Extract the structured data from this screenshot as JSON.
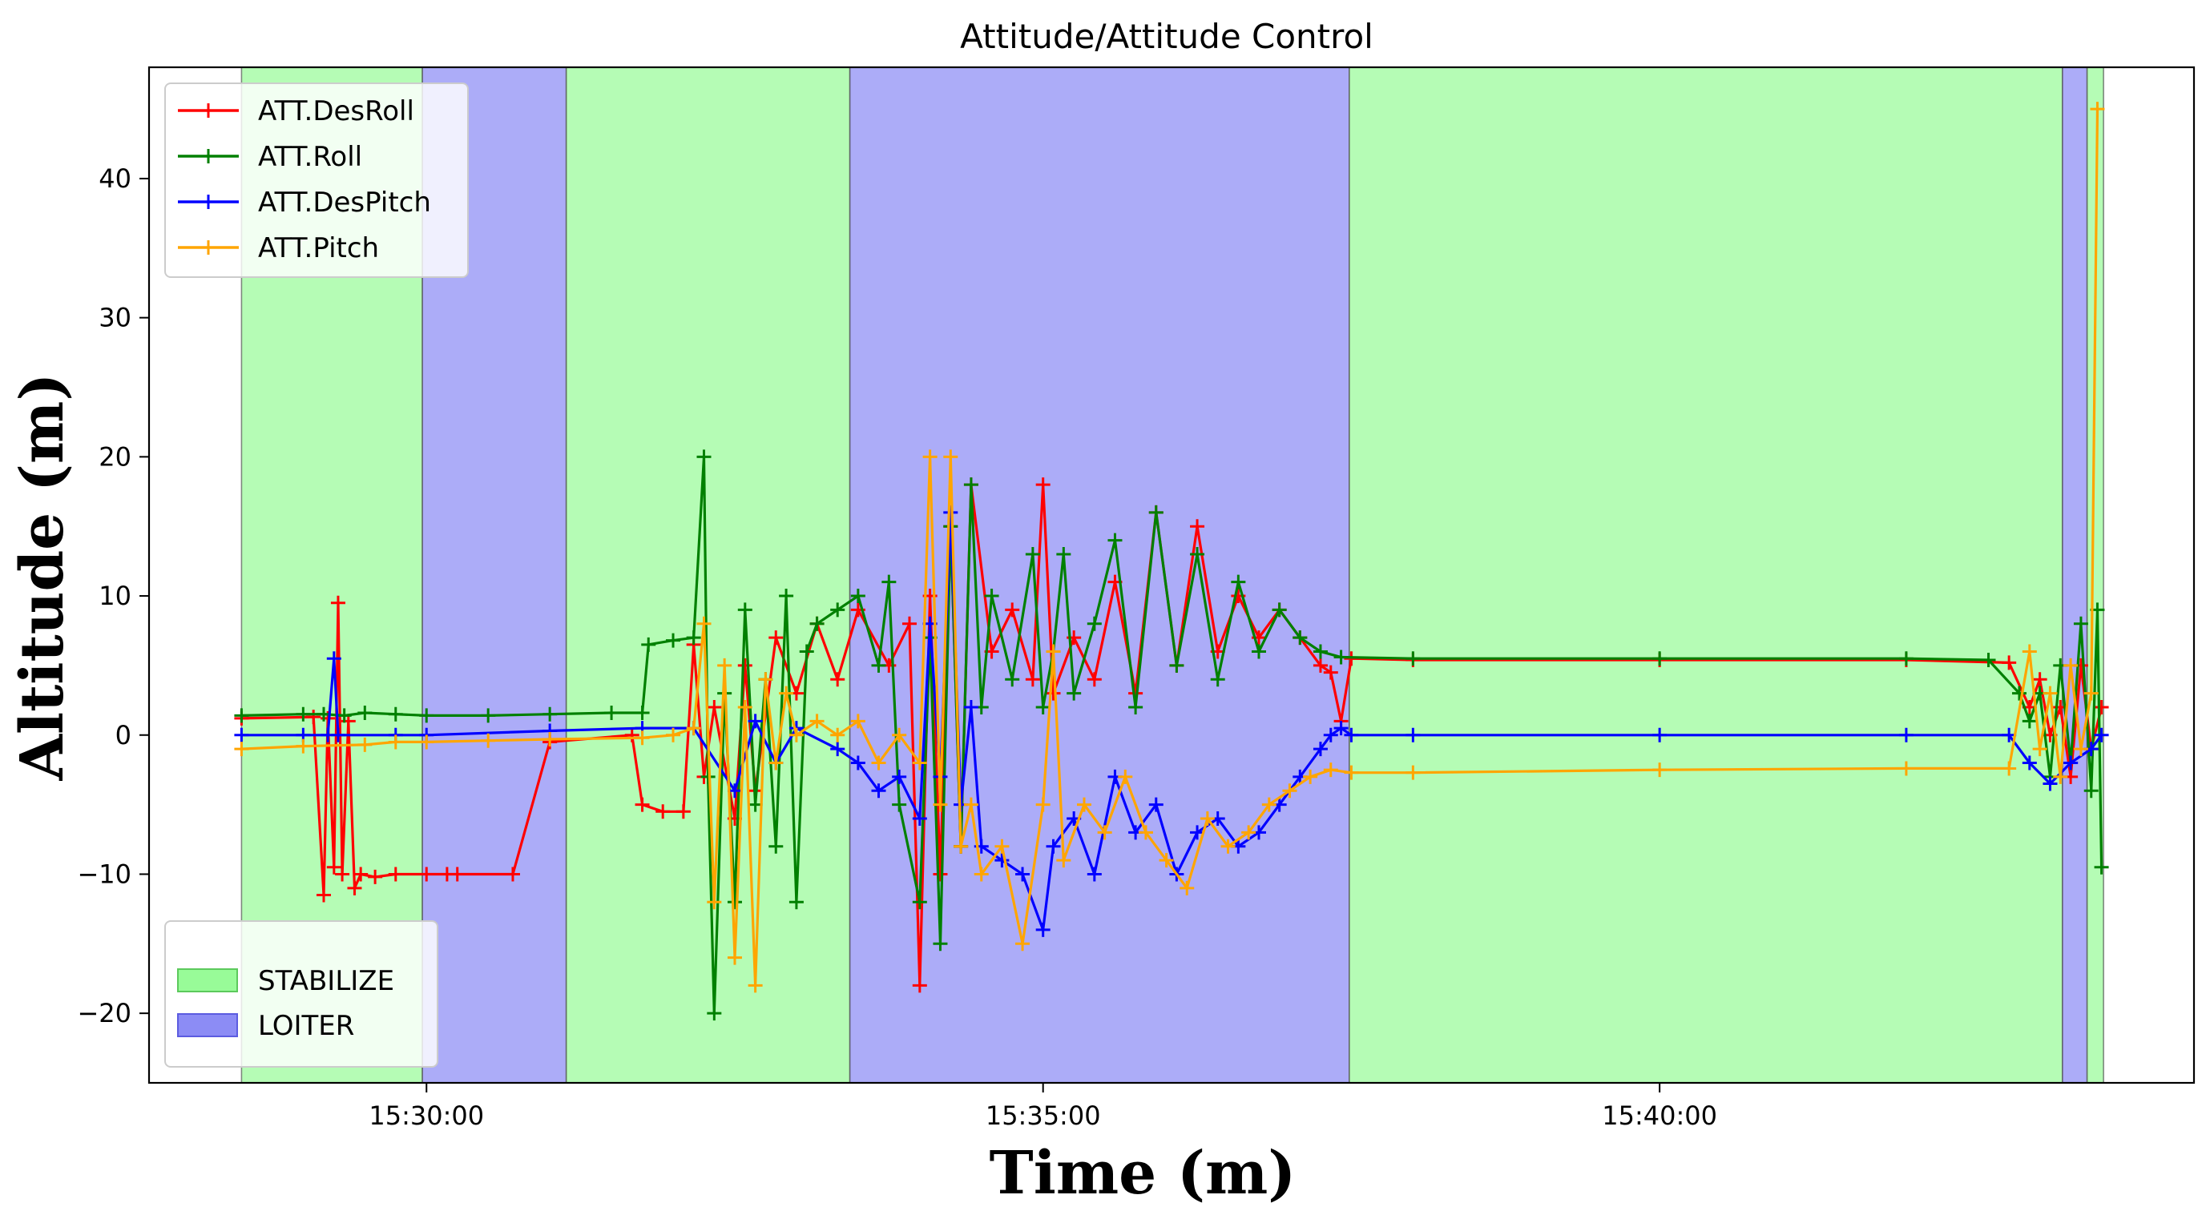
{
  "chart_data": {
    "type": "line",
    "title": "Attitude/Attitude Control",
    "xlabel": "Time (m)",
    "ylabel": "Altitude (m)",
    "x_unit": "time of day (HH:MM:SS)",
    "xlim": [
      "15:27:45",
      "15:44:20"
    ],
    "ylim": [
      -25,
      48
    ],
    "x_ticks": [
      "15:30:00",
      "15:35:00",
      "15:40:00"
    ],
    "y_ticks": [
      -20,
      -10,
      0,
      10,
      20,
      30,
      40
    ],
    "grid": false,
    "legend_lines_position": "top-left",
    "legend_modes_position": "bottom-left",
    "modes": [
      {
        "name": "STABILIZE",
        "color": "#98fb98"
      },
      {
        "name": "LOITER",
        "color": "#8c8cf5"
      }
    ],
    "mode_spans": [
      {
        "mode": "STABILIZE",
        "start": "15:28:30",
        "end": "15:29:58"
      },
      {
        "mode": "LOITER",
        "start": "15:29:58",
        "end": "15:31:08"
      },
      {
        "mode": "STABILIZE",
        "start": "15:31:08",
        "end": "15:33:26"
      },
      {
        "mode": "LOITER",
        "start": "15:33:26",
        "end": "15:37:29"
      },
      {
        "mode": "STABILIZE",
        "start": "15:37:29",
        "end": "15:43:16"
      },
      {
        "mode": "LOITER",
        "start": "15:43:16",
        "end": "15:43:28"
      },
      {
        "mode": "STABILIZE",
        "start": "15:43:28",
        "end": "15:43:36"
      }
    ],
    "series": [
      {
        "name": "ATT.DesRoll",
        "color": "#ff0000",
        "points": [
          [
            "15:28:30",
            1.2
          ],
          [
            "15:29:05",
            1.3
          ],
          [
            "15:29:10",
            -11.5
          ],
          [
            "15:29:12",
            1.2
          ],
          [
            "15:29:15",
            -9.5
          ],
          [
            "15:29:17",
            9.5
          ],
          [
            "15:29:19",
            -10
          ],
          [
            "15:29:22",
            1
          ],
          [
            "15:29:25",
            -11
          ],
          [
            "15:29:28",
            -10
          ],
          [
            "15:29:35",
            -10.2
          ],
          [
            "15:29:45",
            -10
          ],
          [
            "15:30:00",
            -10
          ],
          [
            "15:30:10",
            -10
          ],
          [
            "15:30:15",
            -10
          ],
          [
            "15:30:42",
            -10
          ],
          [
            "15:31:00",
            -0.5
          ],
          [
            "15:31:40",
            0
          ],
          [
            "15:31:45",
            -5
          ],
          [
            "15:31:55",
            -5.5
          ],
          [
            "15:32:05",
            -5.5
          ],
          [
            "15:32:10",
            6.5
          ],
          [
            "15:32:15",
            -3
          ],
          [
            "15:32:20",
            2
          ],
          [
            "15:32:30",
            -6
          ],
          [
            "15:32:35",
            5
          ],
          [
            "15:32:40",
            -4
          ],
          [
            "15:32:50",
            7
          ],
          [
            "15:33:00",
            3
          ],
          [
            "15:33:10",
            8
          ],
          [
            "15:33:20",
            4
          ],
          [
            "15:33:30",
            9
          ],
          [
            "15:33:45",
            5
          ],
          [
            "15:33:55",
            8
          ],
          [
            "15:34:00",
            -18
          ],
          [
            "15:34:05",
            10
          ],
          [
            "15:34:10",
            -10
          ],
          [
            "15:34:15",
            15
          ],
          [
            "15:34:20",
            -8
          ],
          [
            "15:34:25",
            18
          ],
          [
            "15:34:35",
            6
          ],
          [
            "15:34:45",
            9
          ],
          [
            "15:34:55",
            4
          ],
          [
            "15:35:00",
            18
          ],
          [
            "15:35:05",
            3
          ],
          [
            "15:35:15",
            7
          ],
          [
            "15:35:25",
            4
          ],
          [
            "15:35:35",
            11
          ],
          [
            "15:35:45",
            3
          ],
          [
            "15:35:55",
            16
          ],
          [
            "15:36:05",
            5
          ],
          [
            "15:36:15",
            15
          ],
          [
            "15:36:25",
            6
          ],
          [
            "15:36:35",
            10
          ],
          [
            "15:36:45",
            7
          ],
          [
            "15:36:55",
            9
          ],
          [
            "15:37:05",
            7
          ],
          [
            "15:37:15",
            5
          ],
          [
            "15:37:20",
            4.5
          ],
          [
            "15:37:25",
            1
          ],
          [
            "15:37:30",
            5.5
          ],
          [
            "15:38:00",
            5.4
          ],
          [
            "15:40:00",
            5.4
          ],
          [
            "15:42:00",
            5.4
          ],
          [
            "15:42:50",
            5.2
          ],
          [
            "15:43:00",
            2
          ],
          [
            "15:43:05",
            4
          ],
          [
            "15:43:10",
            0
          ],
          [
            "15:43:15",
            2
          ],
          [
            "15:43:20",
            -3
          ],
          [
            "15:43:25",
            5
          ],
          [
            "15:43:30",
            -1
          ],
          [
            "15:43:35",
            2
          ]
        ]
      },
      {
        "name": "ATT.Roll",
        "color": "#008000",
        "points": [
          [
            "15:28:30",
            1.4
          ],
          [
            "15:29:00",
            1.5
          ],
          [
            "15:29:10",
            1.5
          ],
          [
            "15:29:20",
            1.4
          ],
          [
            "15:29:30",
            1.6
          ],
          [
            "15:29:45",
            1.5
          ],
          [
            "15:30:00",
            1.4
          ],
          [
            "15:30:30",
            1.4
          ],
          [
            "15:31:00",
            1.5
          ],
          [
            "15:31:30",
            1.6
          ],
          [
            "15:31:45",
            1.6
          ],
          [
            "15:31:48",
            6.5
          ],
          [
            "15:32:00",
            6.8
          ],
          [
            "15:32:10",
            7
          ],
          [
            "15:32:15",
            20
          ],
          [
            "15:32:17",
            -3
          ],
          [
            "15:32:20",
            -20
          ],
          [
            "15:32:25",
            3
          ],
          [
            "15:32:30",
            -12
          ],
          [
            "15:32:35",
            9
          ],
          [
            "15:32:40",
            -5
          ],
          [
            "15:32:45",
            4
          ],
          [
            "15:32:50",
            -8
          ],
          [
            "15:32:55",
            10
          ],
          [
            "15:33:00",
            -12
          ],
          [
            "15:33:05",
            6
          ],
          [
            "15:33:10",
            8
          ],
          [
            "15:33:20",
            9
          ],
          [
            "15:33:30",
            10
          ],
          [
            "15:33:40",
            5
          ],
          [
            "15:33:45",
            11
          ],
          [
            "15:33:50",
            -5
          ],
          [
            "15:34:00",
            -12
          ],
          [
            "15:34:05",
            7
          ],
          [
            "15:34:10",
            -15
          ],
          [
            "15:34:15",
            15
          ],
          [
            "15:34:20",
            -8
          ],
          [
            "15:34:25",
            18
          ],
          [
            "15:34:30",
            2
          ],
          [
            "15:34:35",
            10
          ],
          [
            "15:34:45",
            4
          ],
          [
            "15:34:55",
            13
          ],
          [
            "15:35:00",
            2
          ],
          [
            "15:35:05",
            6
          ],
          [
            "15:35:10",
            13
          ],
          [
            "15:35:15",
            3
          ],
          [
            "15:35:25",
            8
          ],
          [
            "15:35:35",
            14
          ],
          [
            "15:35:45",
            2
          ],
          [
            "15:35:55",
            16
          ],
          [
            "15:36:05",
            5
          ],
          [
            "15:36:15",
            13
          ],
          [
            "15:36:25",
            4
          ],
          [
            "15:36:35",
            11
          ],
          [
            "15:36:45",
            6
          ],
          [
            "15:36:55",
            9
          ],
          [
            "15:37:05",
            7
          ],
          [
            "15:37:15",
            6
          ],
          [
            "15:37:25",
            5.6
          ],
          [
            "15:38:00",
            5.5
          ],
          [
            "15:40:00",
            5.5
          ],
          [
            "15:42:00",
            5.5
          ],
          [
            "15:42:40",
            5.4
          ],
          [
            "15:42:55",
            3
          ],
          [
            "15:43:00",
            1
          ],
          [
            "15:43:05",
            3
          ],
          [
            "15:43:10",
            -3
          ],
          [
            "15:43:15",
            5
          ],
          [
            "15:43:20",
            -2
          ],
          [
            "15:43:25",
            8
          ],
          [
            "15:43:30",
            -4
          ],
          [
            "15:43:33",
            9
          ],
          [
            "15:43:35",
            -9.5
          ]
        ]
      },
      {
        "name": "ATT.DesPitch",
        "color": "#0000ff",
        "points": [
          [
            "15:28:30",
            0
          ],
          [
            "15:29:00",
            0
          ],
          [
            "15:29:12",
            0
          ],
          [
            "15:29:15",
            5.5
          ],
          [
            "15:29:17",
            0
          ],
          [
            "15:29:45",
            0
          ],
          [
            "15:30:00",
            0
          ],
          [
            "15:31:00",
            0.3
          ],
          [
            "15:31:45",
            0.5
          ],
          [
            "15:32:10",
            0.5
          ],
          [
            "15:32:30",
            -4
          ],
          [
            "15:32:40",
            1
          ],
          [
            "15:32:50",
            -2
          ],
          [
            "15:33:00",
            0.5
          ],
          [
            "15:33:20",
            -1
          ],
          [
            "15:33:30",
            -2
          ],
          [
            "15:33:40",
            -4
          ],
          [
            "15:33:50",
            -3
          ],
          [
            "15:34:00",
            -6
          ],
          [
            "15:34:05",
            8
          ],
          [
            "15:34:10",
            -3
          ],
          [
            "15:34:15",
            16
          ],
          [
            "15:34:20",
            -5
          ],
          [
            "15:34:25",
            2
          ],
          [
            "15:34:30",
            -8
          ],
          [
            "15:34:40",
            -9
          ],
          [
            "15:34:50",
            -10
          ],
          [
            "15:35:00",
            -14
          ],
          [
            "15:35:05",
            -8
          ],
          [
            "15:35:15",
            -6
          ],
          [
            "15:35:25",
            -10
          ],
          [
            "15:35:35",
            -3
          ],
          [
            "15:35:45",
            -7
          ],
          [
            "15:35:55",
            -5
          ],
          [
            "15:36:05",
            -10
          ],
          [
            "15:36:15",
            -7
          ],
          [
            "15:36:25",
            -6
          ],
          [
            "15:36:35",
            -8
          ],
          [
            "15:36:45",
            -7
          ],
          [
            "15:36:55",
            -5
          ],
          [
            "15:37:05",
            -3
          ],
          [
            "15:37:15",
            -1
          ],
          [
            "15:37:20",
            0
          ],
          [
            "15:37:25",
            0.5
          ],
          [
            "15:37:30",
            0
          ],
          [
            "15:38:00",
            0
          ],
          [
            "15:40:00",
            0
          ],
          [
            "15:42:00",
            0
          ],
          [
            "15:42:50",
            0
          ],
          [
            "15:43:00",
            -2
          ],
          [
            "15:43:10",
            -3.5
          ],
          [
            "15:43:20",
            -2
          ],
          [
            "15:43:30",
            -1
          ],
          [
            "15:43:35",
            0
          ]
        ]
      },
      {
        "name": "ATT.Pitch",
        "color": "#ffa500",
        "points": [
          [
            "15:28:30",
            -1
          ],
          [
            "15:29:00",
            -0.8
          ],
          [
            "15:29:30",
            -0.7
          ],
          [
            "15:29:45",
            -0.5
          ],
          [
            "15:30:00",
            -0.5
          ],
          [
            "15:30:30",
            -0.4
          ],
          [
            "15:31:00",
            -0.3
          ],
          [
            "15:31:45",
            -0.2
          ],
          [
            "15:32:00",
            0
          ],
          [
            "15:32:10",
            0.5
          ],
          [
            "15:32:15",
            8
          ],
          [
            "15:32:20",
            -12
          ],
          [
            "15:32:25",
            5
          ],
          [
            "15:32:30",
            -16
          ],
          [
            "15:32:35",
            2
          ],
          [
            "15:32:40",
            -18
          ],
          [
            "15:32:45",
            4
          ],
          [
            "15:32:50",
            -2
          ],
          [
            "15:32:55",
            3
          ],
          [
            "15:33:00",
            0
          ],
          [
            "15:33:10",
            1
          ],
          [
            "15:33:20",
            0
          ],
          [
            "15:33:30",
            1
          ],
          [
            "15:33:40",
            -2
          ],
          [
            "15:33:50",
            0
          ],
          [
            "15:34:00",
            -2
          ],
          [
            "15:34:05",
            20
          ],
          [
            "15:34:10",
            -5
          ],
          [
            "15:34:15",
            20
          ],
          [
            "15:34:20",
            -8
          ],
          [
            "15:34:25",
            -5
          ],
          [
            "15:34:30",
            -10
          ],
          [
            "15:34:40",
            -8
          ],
          [
            "15:34:50",
            -15
          ],
          [
            "15:35:00",
            -5
          ],
          [
            "15:35:05",
            6
          ],
          [
            "15:35:10",
            -9
          ],
          [
            "15:35:20",
            -5
          ],
          [
            "15:35:30",
            -7
          ],
          [
            "15:35:40",
            -3
          ],
          [
            "15:35:50",
            -7
          ],
          [
            "15:36:00",
            -9
          ],
          [
            "15:36:10",
            -11
          ],
          [
            "15:36:20",
            -6
          ],
          [
            "15:36:30",
            -8
          ],
          [
            "15:36:40",
            -7
          ],
          [
            "15:36:50",
            -5
          ],
          [
            "15:37:00",
            -4
          ],
          [
            "15:37:10",
            -3
          ],
          [
            "15:37:20",
            -2.5
          ],
          [
            "15:37:30",
            -2.7
          ],
          [
            "15:38:00",
            -2.7
          ],
          [
            "15:40:00",
            -2.5
          ],
          [
            "15:42:00",
            -2.4
          ],
          [
            "15:42:50",
            -2.4
          ],
          [
            "15:43:00",
            6
          ],
          [
            "15:43:05",
            -1
          ],
          [
            "15:43:10",
            3
          ],
          [
            "15:43:15",
            -3
          ],
          [
            "15:43:20",
            5
          ],
          [
            "15:43:25",
            -1
          ],
          [
            "15:43:30",
            3
          ],
          [
            "15:43:33",
            45
          ]
        ]
      }
    ]
  }
}
